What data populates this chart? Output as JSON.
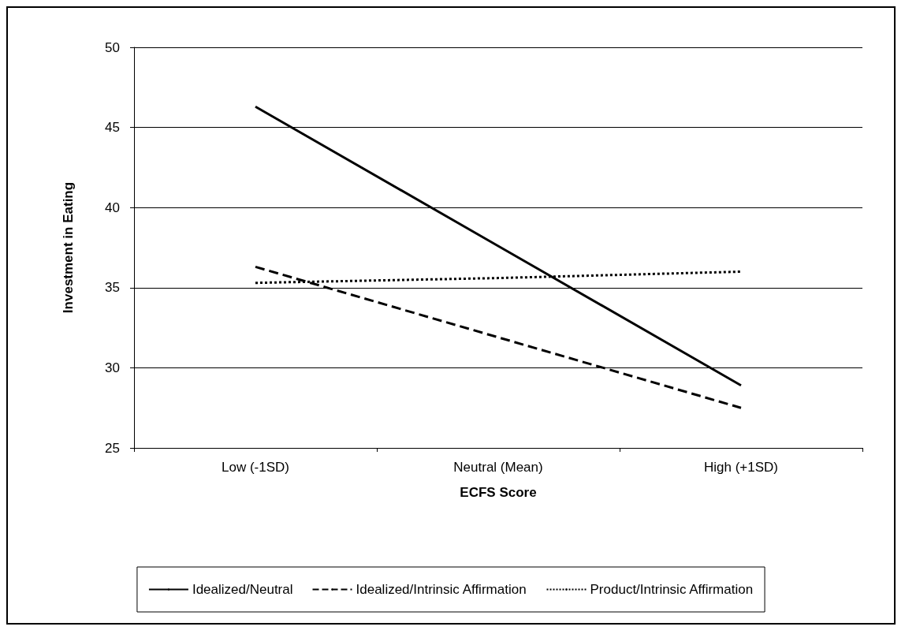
{
  "chart_data": {
    "type": "line",
    "xlabel": "ECFS Score",
    "ylabel": "Investment in Eating",
    "categories": [
      "Low (-1SD)",
      "Neutral (Mean)",
      "High (+1SD)"
    ],
    "series": [
      {
        "name": "Idealized/Neutral",
        "color": "#000000",
        "line_style": "solid",
        "values": [
          46.3,
          37.6,
          28.9
        ]
      },
      {
        "name": "Idealized/Intrinsic Affirmation",
        "color": "#000000",
        "line_style": "dashed",
        "values": [
          36.3,
          31.9,
          27.5
        ]
      },
      {
        "name": "Product/Intrinsic Affirmation",
        "color": "#000000",
        "line_style": "dotted",
        "values": [
          35.3,
          35.6,
          36.0
        ]
      }
    ],
    "ylim": [
      25,
      50
    ],
    "yticks": [
      25,
      30,
      35,
      40,
      45,
      50
    ],
    "grid": "y",
    "legend": "bottom",
    "marker": "none"
  }
}
